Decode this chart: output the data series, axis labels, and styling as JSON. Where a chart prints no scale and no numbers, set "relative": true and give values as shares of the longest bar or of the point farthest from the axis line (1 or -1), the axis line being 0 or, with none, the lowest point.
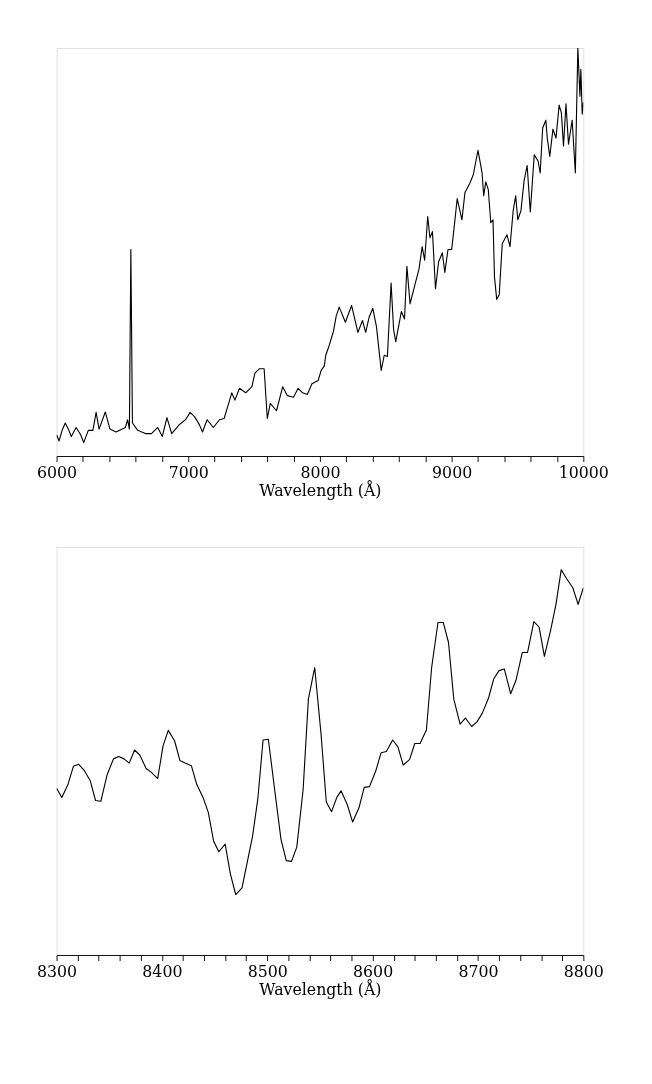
{
  "chart_data": [
    {
      "type": "line",
      "relative": true,
      "xlabel": "Wavelength (Å)",
      "xlim": [
        6000,
        10000
      ],
      "xticks": [
        6000,
        {
          "value": 6200,
          "label": null
        },
        {
          "value": 6400,
          "label": null
        },
        {
          "value": 6600,
          "label": null
        },
        {
          "value": 6800,
          "label": null
        },
        7000,
        {
          "value": 7200,
          "label": null
        },
        {
          "value": 7400,
          "label": null
        },
        {
          "value": 7600,
          "label": null
        },
        {
          "value": 7800,
          "label": null
        },
        8000,
        {
          "value": 8200,
          "label": null
        },
        {
          "value": 8400,
          "label": null
        },
        {
          "value": 8600,
          "label": null
        },
        {
          "value": 8800,
          "label": null
        },
        9000,
        {
          "value": 9200,
          "label": null
        },
        {
          "value": 9400,
          "label": null
        },
        {
          "value": 9600,
          "label": null
        },
        {
          "value": 9800,
          "label": null
        },
        10000
      ],
      "series": [
        {
          "color": "#000000",
          "x": [
            6000,
            6019,
            6042,
            6066,
            6089,
            6112,
            6148,
            6183,
            6206,
            6241,
            6276,
            6300,
            6323,
            6370,
            6405,
            6452,
            6522,
            6539,
            6553,
            6564,
            6576,
            6616,
            6674,
            6721,
            6768,
            6803,
            6838,
            6874,
            6932,
            6979,
            7014,
            7049,
            7084,
            7108,
            7143,
            7190,
            7237,
            7272,
            7307,
            7330,
            7354,
            7389,
            7436,
            7483,
            7506,
            7541,
            7576,
            7600,
            7623,
            7670,
            7717,
            7752,
            7799,
            7834,
            7869,
            7904,
            7939,
            7986,
            8009,
            8033,
            8044,
            8068,
            8103,
            8123,
            8146,
            8193,
            8240,
            8288,
            8323,
            8347,
            8373,
            8401,
            8429,
            8465,
            8488,
            8512,
            8540,
            8559,
            8575,
            8618,
            8642,
            8660,
            8684,
            8724,
            8752,
            8776,
            8795,
            8818,
            8835,
            8854,
            8877,
            8901,
            8929,
            8948,
            8972,
            9000,
            9019,
            9042,
            9078,
            9101,
            9137,
            9165,
            9184,
            9200,
            9231,
            9243,
            9259,
            9278,
            9297,
            9314,
            9325,
            9342,
            9361,
            9384,
            9420,
            9443,
            9467,
            9486,
            9502,
            9526,
            9550,
            9573,
            9597,
            9627,
            9656,
            9672,
            9691,
            9715,
            9726,
            9745,
            9769,
            9792,
            9816,
            9833,
            9849,
            9868,
            9887,
            9915,
            9939,
            9958,
            9974,
            9981,
            9991,
            10000
          ],
          "values": [
            0.052,
            0.037,
            0.063,
            0.081,
            0.066,
            0.048,
            0.07,
            0.052,
            0.033,
            0.063,
            0.063,
            0.107,
            0.066,
            0.108,
            0.066,
            0.059,
            0.07,
            0.089,
            0.066,
            0.506,
            0.081,
            0.063,
            0.055,
            0.055,
            0.07,
            0.048,
            0.094,
            0.055,
            0.077,
            0.089,
            0.107,
            0.096,
            0.077,
            0.059,
            0.089,
            0.07,
            0.089,
            0.092,
            0.129,
            0.155,
            0.137,
            0.166,
            0.155,
            0.17,
            0.203,
            0.214,
            0.214,
            0.092,
            0.129,
            0.111,
            0.17,
            0.148,
            0.144,
            0.166,
            0.155,
            0.151,
            0.177,
            0.185,
            0.21,
            0.221,
            0.247,
            0.269,
            0.306,
            0.343,
            0.365,
            0.328,
            0.369,
            0.303,
            0.332,
            0.303,
            0.34,
            0.362,
            0.317,
            0.21,
            0.247,
            0.244,
            0.424,
            0.31,
            0.28,
            0.354,
            0.336,
            0.465,
            0.373,
            0.424,
            0.458,
            0.513,
            0.48,
            0.587,
            0.535,
            0.55,
            0.41,
            0.476,
            0.498,
            0.45,
            0.506,
            0.506,
            0.561,
            0.631,
            0.579,
            0.646,
            0.668,
            0.69,
            0.723,
            0.749,
            0.694,
            0.638,
            0.672,
            0.653,
            0.572,
            0.579,
            0.439,
            0.384,
            0.395,
            0.52,
            0.542,
            0.513,
            0.601,
            0.638,
            0.579,
            0.601,
            0.675,
            0.712,
            0.598,
            0.738,
            0.723,
            0.694,
            0.804,
            0.823,
            0.779,
            0.734,
            0.801,
            0.779,
            0.86,
            0.841,
            0.76,
            0.863,
            0.764,
            0.823,
            0.694,
            1.0,
            0.882,
            0.948,
            0.838,
            0.867
          ]
        }
      ]
    },
    {
      "type": "line",
      "relative": true,
      "xlabel": "Wavelength (Å)",
      "xlim": [
        8300,
        8800
      ],
      "xticks": [
        8300,
        {
          "value": 8320,
          "label": null
        },
        {
          "value": 8340,
          "label": null
        },
        {
          "value": 8360,
          "label": null
        },
        {
          "value": 8380,
          "label": null
        },
        8400,
        {
          "value": 8420,
          "label": null
        },
        {
          "value": 8440,
          "label": null
        },
        {
          "value": 8460,
          "label": null
        },
        {
          "value": 8480,
          "label": null
        },
        8500,
        {
          "value": 8520,
          "label": null
        },
        {
          "value": 8540,
          "label": null
        },
        {
          "value": 8560,
          "label": null
        },
        {
          "value": 8580,
          "label": null
        },
        8600,
        {
          "value": 8620,
          "label": null
        },
        {
          "value": 8640,
          "label": null
        },
        {
          "value": 8660,
          "label": null
        },
        {
          "value": 8680,
          "label": null
        },
        8700,
        {
          "value": 8720,
          "label": null
        },
        {
          "value": 8740,
          "label": null
        },
        {
          "value": 8760,
          "label": null
        },
        {
          "value": 8780,
          "label": null
        },
        8800
      ],
      "series": [
        {
          "color": "#000000",
          "x": [
            8300,
            8305,
            8311,
            8316,
            8321,
            8326,
            8332,
            8337,
            8342,
            8348,
            8354,
            8359,
            8364,
            8369,
            8374,
            8379,
            8385,
            8390,
            8396,
            8401,
            8406,
            8412,
            8417,
            8422,
            8428,
            8433,
            8439,
            8444,
            8449,
            8454,
            8460,
            8465,
            8470,
            8476,
            8481,
            8486,
            8491,
            8496,
            8501,
            8507,
            8513,
            8518,
            8523,
            8528,
            8534,
            8539,
            8545,
            8551,
            8556,
            8561,
            8566,
            8570,
            8576,
            8581,
            8587,
            8592,
            8597,
            8603,
            8608,
            8613,
            8619,
            8624,
            8629,
            8635,
            8640,
            8645,
            8651,
            8656,
            8662,
            8667,
            8672,
            8677,
            8683,
            8688,
            8694,
            8699,
            8704,
            8710,
            8715,
            8720,
            8725,
            8731,
            8736,
            8742,
            8747,
            8753,
            8758,
            8763,
            8769,
            8774,
            8779,
            8784,
            8790,
            8795,
            8800
          ],
          "values": [
            0.433,
            0.409,
            0.444,
            0.49,
            0.495,
            0.48,
            0.452,
            0.401,
            0.399,
            0.468,
            0.509,
            0.515,
            0.509,
            0.498,
            0.532,
            0.519,
            0.484,
            0.474,
            0.458,
            0.542,
            0.583,
            0.556,
            0.505,
            0.498,
            0.491,
            0.443,
            0.409,
            0.37,
            0.296,
            0.268,
            0.288,
            0.21,
            0.157,
            0.174,
            0.241,
            0.308,
            0.405,
            0.558,
            0.56,
            0.429,
            0.3,
            0.245,
            0.243,
            0.28,
            0.429,
            0.664,
            0.746,
            0.574,
            0.397,
            0.372,
            0.409,
            0.426,
            0.39,
            0.345,
            0.382,
            0.435,
            0.437,
            0.478,
            0.525,
            0.528,
            0.558,
            0.54,
            0.493,
            0.507,
            0.549,
            0.549,
            0.584,
            0.746,
            0.863,
            0.863,
            0.811,
            0.664,
            0.599,
            0.615,
            0.593,
            0.605,
            0.627,
            0.667,
            0.717,
            0.738,
            0.742,
            0.678,
            0.713,
            0.785,
            0.785,
            0.865,
            0.851,
            0.775,
            0.844,
            0.91,
            1.0,
            0.977,
            0.953,
            0.91,
            0.953
          ]
        }
      ]
    }
  ]
}
